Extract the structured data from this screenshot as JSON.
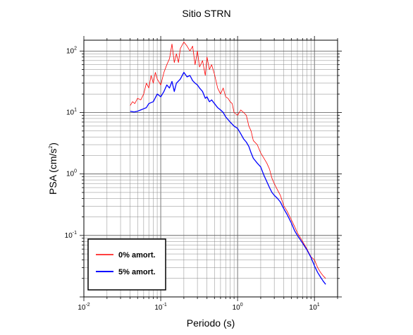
{
  "chart_data": {
    "type": "line",
    "title": "Sitio STRN",
    "xlabel": "Periodo (s)",
    "ylabel": {
      "base": "PSA (cm/s",
      "sup": "2",
      "close": ")"
    },
    "xscale": "log",
    "yscale": "log",
    "xlim": [
      0.01,
      20
    ],
    "ylim": [
      0.01,
      150
    ],
    "grid": true,
    "legend_position": "bottom-left",
    "x_ticks": [
      {
        "mantissa": "10",
        "exp": "-2",
        "value": 0.01
      },
      {
        "mantissa": "10",
        "exp": "-1",
        "value": 0.1
      },
      {
        "mantissa": "10",
        "exp": "0",
        "value": 1
      },
      {
        "mantissa": "10",
        "exp": "1",
        "value": 10
      }
    ],
    "y_ticks": [
      {
        "mantissa": "10",
        "exp": "-1",
        "value": 0.1
      },
      {
        "mantissa": "10",
        "exp": "0",
        "value": 1
      },
      {
        "mantissa": "10",
        "exp": "1",
        "value": 10
      },
      {
        "mantissa": "10",
        "exp": "2",
        "value": 100
      }
    ],
    "series": [
      {
        "name": "0% amort.",
        "color": "#ff0000",
        "stroke": "thin",
        "points": [
          [
            0.04,
            13
          ],
          [
            0.043,
            15
          ],
          [
            0.046,
            14
          ],
          [
            0.05,
            17
          ],
          [
            0.055,
            16
          ],
          [
            0.06,
            20
          ],
          [
            0.065,
            30
          ],
          [
            0.07,
            25
          ],
          [
            0.075,
            40
          ],
          [
            0.08,
            30
          ],
          [
            0.085,
            45
          ],
          [
            0.09,
            35
          ],
          [
            0.1,
            28
          ],
          [
            0.11,
            45
          ],
          [
            0.12,
            60
          ],
          [
            0.13,
            75
          ],
          [
            0.14,
            130
          ],
          [
            0.15,
            65
          ],
          [
            0.16,
            90
          ],
          [
            0.17,
            65
          ],
          [
            0.18,
            110
          ],
          [
            0.2,
            140
          ],
          [
            0.22,
            120
          ],
          [
            0.24,
            100
          ],
          [
            0.26,
            120
          ],
          [
            0.28,
            60
          ],
          [
            0.3,
            100
          ],
          [
            0.32,
            55
          ],
          [
            0.35,
            70
          ],
          [
            0.38,
            40
          ],
          [
            0.4,
            80
          ],
          [
            0.43,
            50
          ],
          [
            0.46,
            60
          ],
          [
            0.5,
            42
          ],
          [
            0.55,
            25
          ],
          [
            0.6,
            20
          ],
          [
            0.65,
            25
          ],
          [
            0.7,
            18
          ],
          [
            0.75,
            17
          ],
          [
            0.8,
            15
          ],
          [
            0.85,
            14
          ],
          [
            0.9,
            10
          ],
          [
            1.0,
            9
          ],
          [
            1.1,
            11
          ],
          [
            1.2,
            10
          ],
          [
            1.3,
            9
          ],
          [
            1.4,
            6
          ],
          [
            1.5,
            5
          ],
          [
            1.6,
            3.5
          ],
          [
            1.8,
            3.0
          ],
          [
            2.0,
            2.2
          ],
          [
            2.2,
            1.8
          ],
          [
            2.4,
            1.5
          ],
          [
            2.6,
            1.2
          ],
          [
            2.8,
            0.85
          ],
          [
            3.0,
            0.7
          ],
          [
            3.3,
            0.55
          ],
          [
            3.6,
            0.45
          ],
          [
            4.0,
            0.3
          ],
          [
            4.4,
            0.25
          ],
          [
            5.0,
            0.18
          ],
          [
            5.5,
            0.14
          ],
          [
            6.0,
            0.11
          ],
          [
            7.0,
            0.08
          ],
          [
            8.0,
            0.06
          ],
          [
            9.0,
            0.045
          ],
          [
            10.0,
            0.04
          ],
          [
            11.0,
            0.03
          ],
          [
            12.0,
            0.025
          ],
          [
            13.0,
            0.022
          ],
          [
            14.0,
            0.02
          ]
        ]
      },
      {
        "name": "5% amort.",
        "color": "#0000ff",
        "stroke": "thick",
        "points": [
          [
            0.04,
            10.5
          ],
          [
            0.045,
            10.2
          ],
          [
            0.05,
            10.5
          ],
          [
            0.055,
            11
          ],
          [
            0.06,
            11.5
          ],
          [
            0.065,
            12
          ],
          [
            0.07,
            14
          ],
          [
            0.08,
            15
          ],
          [
            0.09,
            20
          ],
          [
            0.1,
            18
          ],
          [
            0.11,
            22
          ],
          [
            0.12,
            28
          ],
          [
            0.13,
            25
          ],
          [
            0.14,
            32
          ],
          [
            0.15,
            22
          ],
          [
            0.16,
            30
          ],
          [
            0.18,
            35
          ],
          [
            0.2,
            45
          ],
          [
            0.22,
            38
          ],
          [
            0.24,
            40
          ],
          [
            0.26,
            33
          ],
          [
            0.28,
            30
          ],
          [
            0.3,
            28
          ],
          [
            0.32,
            25
          ],
          [
            0.35,
            22
          ],
          [
            0.38,
            17
          ],
          [
            0.4,
            18
          ],
          [
            0.43,
            15
          ],
          [
            0.46,
            16
          ],
          [
            0.5,
            14
          ],
          [
            0.55,
            12
          ],
          [
            0.6,
            11
          ],
          [
            0.65,
            10
          ],
          [
            0.7,
            8.5
          ],
          [
            0.8,
            7
          ],
          [
            0.9,
            6
          ],
          [
            1.0,
            5.5
          ],
          [
            1.1,
            4.5
          ],
          [
            1.2,
            3.7
          ],
          [
            1.3,
            3.3
          ],
          [
            1.4,
            2.8
          ],
          [
            1.5,
            2.2
          ],
          [
            1.6,
            1.8
          ],
          [
            1.8,
            1.5
          ],
          [
            2.0,
            1.3
          ],
          [
            2.2,
            0.95
          ],
          [
            2.4,
            0.75
          ],
          [
            2.6,
            0.6
          ],
          [
            2.8,
            0.5
          ],
          [
            3.0,
            0.45
          ],
          [
            3.3,
            0.4
          ],
          [
            3.6,
            0.35
          ],
          [
            4.0,
            0.27
          ],
          [
            4.4,
            0.22
          ],
          [
            5.0,
            0.16
          ],
          [
            5.5,
            0.12
          ],
          [
            6.0,
            0.1
          ],
          [
            7.0,
            0.075
          ],
          [
            8.0,
            0.058
          ],
          [
            9.0,
            0.044
          ],
          [
            10.0,
            0.032
          ],
          [
            11.0,
            0.025
          ],
          [
            12.0,
            0.021
          ],
          [
            13.0,
            0.018
          ],
          [
            14.0,
            0.016
          ]
        ]
      }
    ]
  }
}
